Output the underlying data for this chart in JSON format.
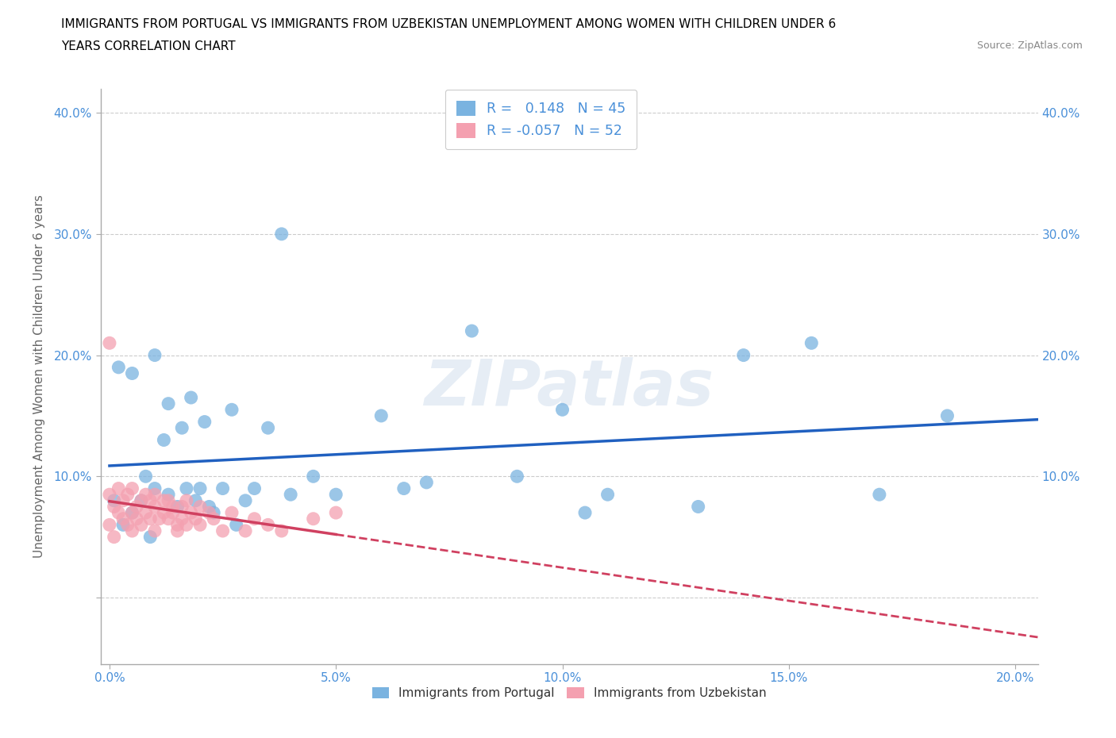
{
  "title_line1": "IMMIGRANTS FROM PORTUGAL VS IMMIGRANTS FROM UZBEKISTAN UNEMPLOYMENT AMONG WOMEN WITH CHILDREN UNDER 6",
  "title_line2": "YEARS CORRELATION CHART",
  "source": "Source: ZipAtlas.com",
  "ylabel": "Unemployment Among Women with Children Under 6 years",
  "xlim": [
    -0.002,
    0.205
  ],
  "ylim": [
    -0.055,
    0.42
  ],
  "yticks": [
    0.0,
    0.1,
    0.2,
    0.3,
    0.4
  ],
  "xticks": [
    0.0,
    0.05,
    0.1,
    0.15,
    0.2
  ],
  "xtick_labels": [
    "0.0%",
    "5.0%",
    "10.0%",
    "15.0%",
    "20.0%"
  ],
  "ytick_labels": [
    "",
    "10.0%",
    "20.0%",
    "30.0%",
    "40.0%"
  ],
  "legend_labels": [
    "Immigrants from Portugal",
    "Immigrants from Uzbekistan"
  ],
  "R_portugal": 0.148,
  "N_portugal": 45,
  "R_uzbekistan": -0.057,
  "N_uzbekistan": 52,
  "color_portugal": "#7ab3e0",
  "color_uzbekistan": "#f4a0b0",
  "color_trendline_portugal": "#2060c0",
  "color_trendline_uzbekistan": "#d04060",
  "watermark": "ZIPatlas",
  "portugal_x": [
    0.001,
    0.002,
    0.003,
    0.005,
    0.005,
    0.007,
    0.008,
    0.009,
    0.01,
    0.01,
    0.012,
    0.013,
    0.013,
    0.015,
    0.016,
    0.017,
    0.018,
    0.019,
    0.02,
    0.021,
    0.022,
    0.023,
    0.025,
    0.027,
    0.028,
    0.03,
    0.032,
    0.035,
    0.038,
    0.04,
    0.045,
    0.05,
    0.06,
    0.065,
    0.07,
    0.08,
    0.09,
    0.1,
    0.105,
    0.11,
    0.13,
    0.14,
    0.155,
    0.17,
    0.185
  ],
  "portugal_y": [
    0.08,
    0.19,
    0.06,
    0.07,
    0.185,
    0.08,
    0.1,
    0.05,
    0.09,
    0.2,
    0.13,
    0.16,
    0.085,
    0.075,
    0.14,
    0.09,
    0.165,
    0.08,
    0.09,
    0.145,
    0.075,
    0.07,
    0.09,
    0.155,
    0.06,
    0.08,
    0.09,
    0.14,
    0.3,
    0.085,
    0.1,
    0.085,
    0.15,
    0.09,
    0.095,
    0.22,
    0.1,
    0.155,
    0.07,
    0.085,
    0.075,
    0.2,
    0.21,
    0.085,
    0.15
  ],
  "uzbekistan_x": [
    0.0,
    0.0,
    0.0,
    0.001,
    0.001,
    0.002,
    0.002,
    0.003,
    0.003,
    0.004,
    0.004,
    0.005,
    0.005,
    0.005,
    0.006,
    0.006,
    0.007,
    0.007,
    0.008,
    0.008,
    0.009,
    0.009,
    0.01,
    0.01,
    0.01,
    0.011,
    0.012,
    0.012,
    0.013,
    0.013,
    0.014,
    0.014,
    0.015,
    0.015,
    0.016,
    0.016,
    0.017,
    0.017,
    0.018,
    0.019,
    0.02,
    0.02,
    0.022,
    0.023,
    0.025,
    0.027,
    0.03,
    0.032,
    0.035,
    0.038,
    0.045,
    0.05
  ],
  "uzbekistan_y": [
    0.085,
    0.06,
    0.21,
    0.075,
    0.05,
    0.07,
    0.09,
    0.065,
    0.08,
    0.06,
    0.085,
    0.055,
    0.07,
    0.09,
    0.075,
    0.065,
    0.08,
    0.06,
    0.07,
    0.085,
    0.065,
    0.08,
    0.075,
    0.055,
    0.085,
    0.065,
    0.08,
    0.07,
    0.065,
    0.08,
    0.07,
    0.075,
    0.06,
    0.055,
    0.075,
    0.065,
    0.06,
    0.08,
    0.07,
    0.065,
    0.075,
    0.06,
    0.07,
    0.065,
    0.055,
    0.07,
    0.055,
    0.065,
    0.06,
    0.055,
    0.065,
    0.07
  ],
  "trendline_port_x0": 0.001,
  "trendline_port_x1": 0.185,
  "trendline_uzb_x0": 0.0,
  "trendline_uzb_x1": 0.205,
  "trendline_uzb_solid_end": 0.05
}
